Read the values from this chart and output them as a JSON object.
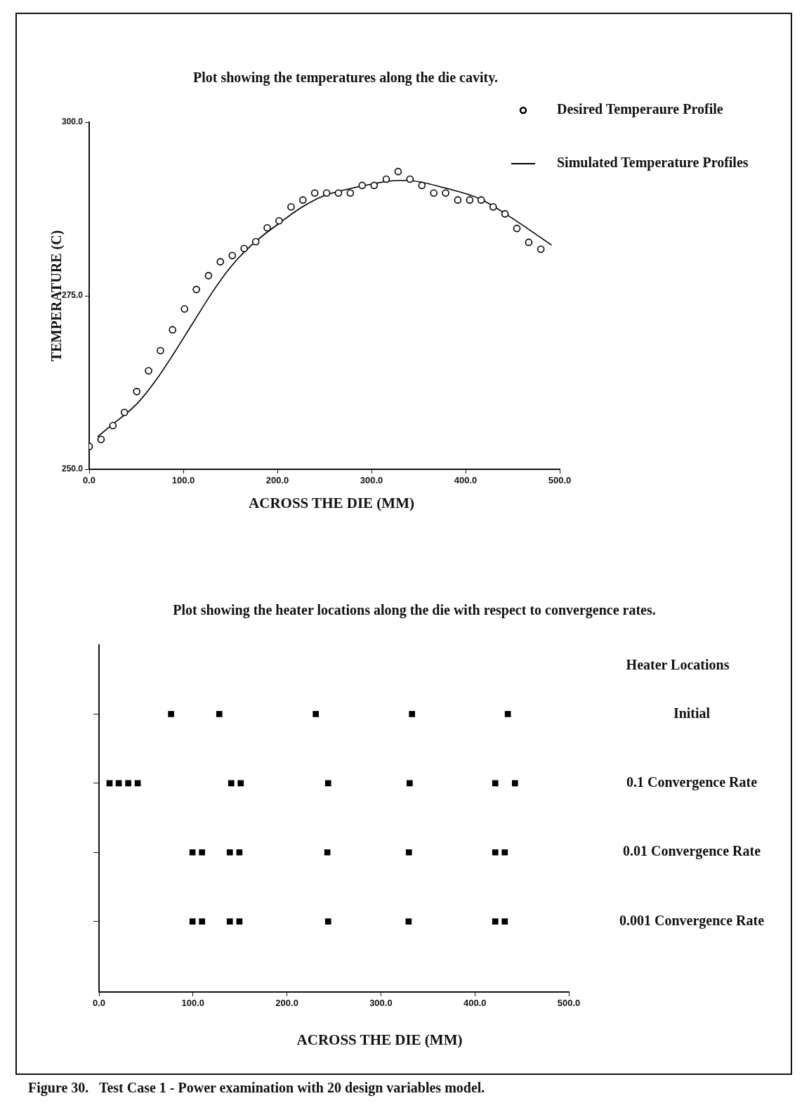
{
  "chart_data": [
    {
      "type": "scatter",
      "title": "Plot showing the temperatures along the die cavity.",
      "xlabel": "ACROSS THE DIE (MM)",
      "ylabel": "TEMPERATURE (C)",
      "legend": "top right",
      "grid": false,
      "xlim": [
        0,
        500
      ],
      "xticks": [
        {
          "value": 0,
          "label": "0.0"
        },
        {
          "value": 100,
          "label": "100.0"
        },
        {
          "value": 200,
          "label": "200.0"
        },
        {
          "value": 300,
          "label": "300.0"
        },
        {
          "value": 400,
          "label": "400.0"
        },
        {
          "value": 500,
          "label": "500.0"
        }
      ],
      "ylim": [
        250,
        300
      ],
      "yticks": [
        {
          "value": 250,
          "label": "250.0"
        },
        {
          "value": 275,
          "label": "275.0"
        },
        {
          "value": 300,
          "label": "300.0"
        }
      ],
      "series": [
        {
          "name": "Desired Temperaure Profile",
          "type": "scatter",
          "marker": "circle",
          "color": "#000000",
          "x": [
            0,
            12.6,
            25.2,
            37.5,
            50.5,
            63.1,
            75.7,
            88.6,
            101.3,
            113.9,
            126.8,
            139.4,
            152.1,
            164.7,
            177,
            189.2,
            201.8,
            214.5,
            227.1,
            239.7,
            252.3,
            264.9,
            277.5,
            290.1,
            302.8,
            315.7,
            328.3,
            340.9,
            353.6,
            366.2,
            378.8,
            391.7,
            404.4,
            416.6,
            429.3,
            441.9,
            454.5,
            467.1,
            480
          ],
          "values": [
            253.3,
            254.3,
            256.3,
            258.2,
            261.2,
            264.2,
            267.1,
            270.1,
            273.1,
            275.9,
            277.9,
            279.9,
            280.8,
            281.8,
            282.8,
            284.8,
            285.8,
            287.8,
            288.8,
            289.8,
            289.8,
            289.8,
            289.8,
            290.9,
            290.9,
            291.8,
            292.9,
            291.8,
            290.9,
            289.8,
            289.8,
            288.8,
            288.8,
            288.8,
            287.8,
            286.8,
            284.7,
            282.7,
            281.7
          ]
        },
        {
          "name": "Simulated Temperature Profiles",
          "type": "line",
          "marker": "none",
          "line_style": "solid",
          "color": "#000000",
          "x": [
            9,
            24.2,
            50.5,
            70.2,
            89,
            109.4,
            133.3,
            153.8,
            177.6,
            201.5,
            225.3,
            249.2,
            273.1,
            300.4,
            327.6,
            337.9,
            378.8,
            416.3,
            450.4,
            491.3
          ],
          "values": [
            254.7,
            256.4,
            259.4,
            262.7,
            266.5,
            270.9,
            276,
            279.7,
            282.9,
            285.4,
            287.7,
            289.4,
            290.3,
            291.1,
            291.6,
            291.6,
            290.5,
            288.9,
            286.1,
            282.3
          ]
        }
      ]
    },
    {
      "type": "scatter",
      "title": "Plot showing the heater locations along the die with respect to convergence rates.",
      "xlabel": "ACROSS THE DIE (MM)",
      "grid": false,
      "orientation": "horizontal",
      "marker": "square",
      "annotations": [
        "Heater Locations",
        "Figure 30.   Test Case 1 - Power examination with 20 design variables model."
      ],
      "categories": [
        "Initial",
        "0.1 Convergence Rate",
        "0.01 Convergence Rate",
        "0.001 Convergence Rate"
      ],
      "xlim": [
        0,
        500
      ],
      "xticks": [
        {
          "value": 0,
          "label": "0.0"
        },
        {
          "value": 100,
          "label": "100.0"
        },
        {
          "value": 200,
          "label": "200.0"
        },
        {
          "value": 300,
          "label": "300.0"
        },
        {
          "value": 400,
          "label": "400.0"
        },
        {
          "value": 500,
          "label": "500.0"
        }
      ],
      "series": [
        {
          "color": "#000000",
          "values": [
            76.7,
            11.2,
            99.5,
            99.5
          ]
        },
        {
          "color": "#000000",
          "values": [
            128,
            21,
            109.6,
            109.6
          ]
        },
        {
          "color": "#000000",
          "values": [
            230.7,
            31.1,
            139.2,
            139.2
          ]
        },
        {
          "color": "#000000",
          "values": [
            333.1,
            41.2,
            149.4,
            149.4
          ]
        },
        {
          "color": "#000000",
          "values": [
            435.1,
            140.7,
            243,
            243.8
          ]
        },
        {
          "color": "#000000",
          "values": [
            null,
            150.8,
            329.8,
            329.5
          ]
        },
        {
          "color": "#000000",
          "values": [
            null,
            243.8,
            421.7,
            421.7
          ]
        },
        {
          "color": "#000000",
          "values": [
            null,
            330.6,
            431.8,
            431.8
          ]
        },
        {
          "color": "#000000",
          "values": [
            null,
            421.7,
            null,
            null
          ]
        },
        {
          "color": "#000000",
          "values": [
            null,
            442.7,
            null,
            null
          ]
        }
      ]
    }
  ]
}
